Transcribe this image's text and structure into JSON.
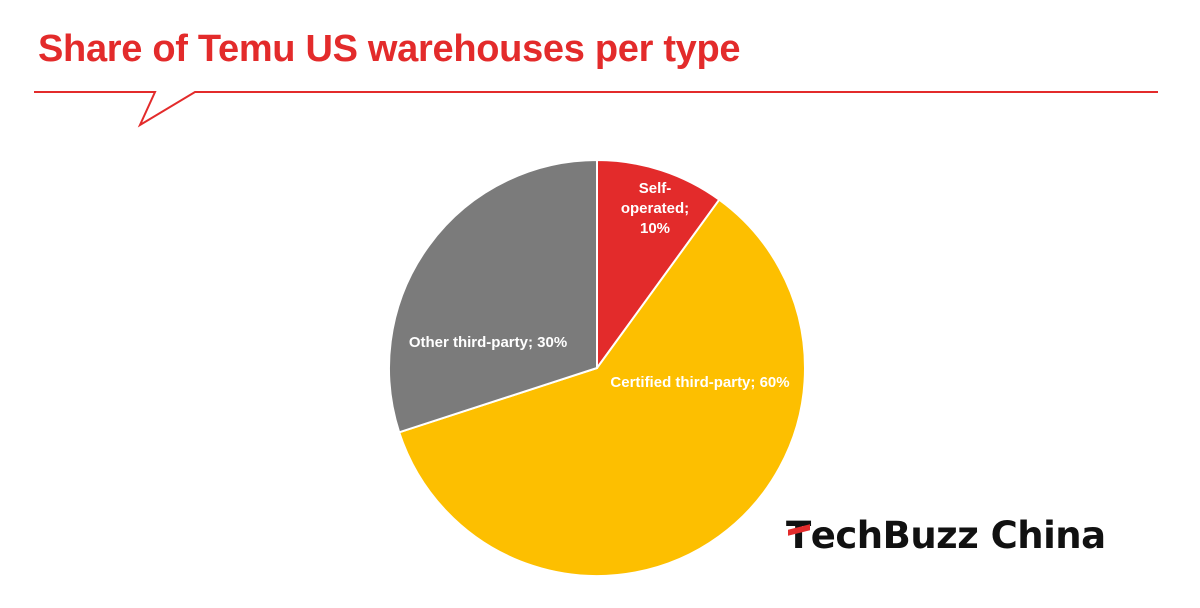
{
  "chart_data": {
    "type": "pie",
    "title": "Share of Temu US warehouses per type",
    "slices": [
      {
        "name": "Self-operated",
        "value": 10,
        "color": "#e32b2b",
        "label_lines": [
          "Self-",
          "operated;",
          "10%"
        ]
      },
      {
        "name": "Certified third-party",
        "value": 60,
        "color": "#fdbf00",
        "label_lines": [
          "Certified third-party; 60%"
        ]
      },
      {
        "name": "Other third-party",
        "value": 30,
        "color": "#7b7b7b",
        "label_lines": [
          "Other third-party; 30%"
        ]
      }
    ],
    "start_angle": "12 o'clock, clockwise"
  },
  "brand": {
    "prefix": "T",
    "rest": "echBuzz China"
  },
  "colors": {
    "accent": "#e32b2b",
    "border": "#ffffff"
  }
}
